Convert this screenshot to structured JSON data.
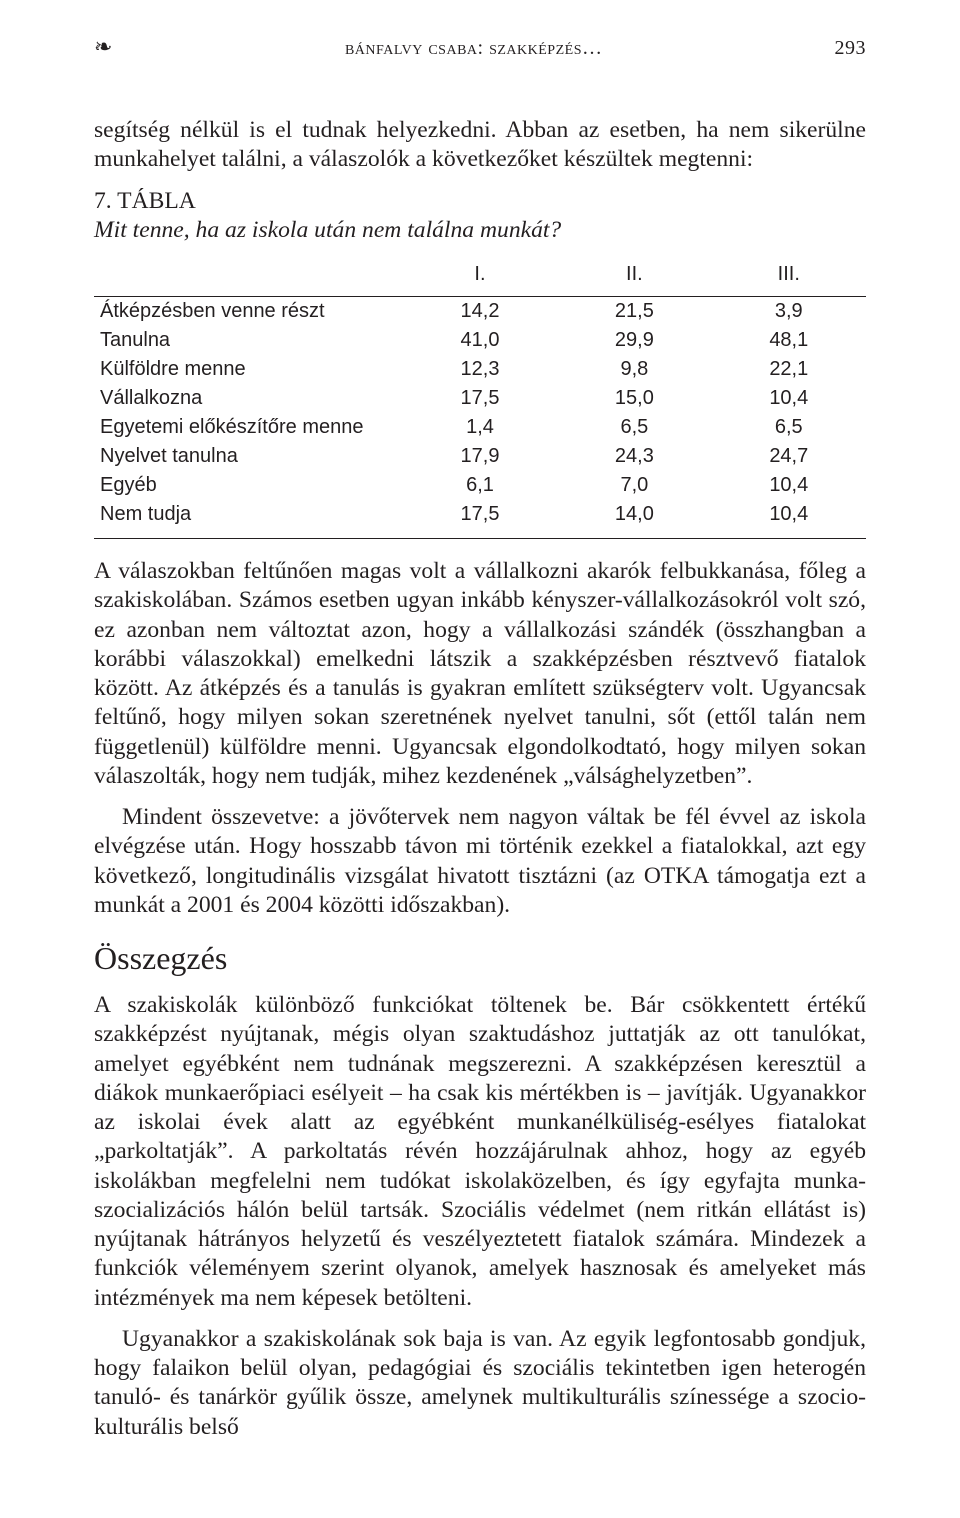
{
  "header": {
    "ornament": "❧",
    "running_title": "bánfalvy csaba: szakképzés…",
    "page_number": "293"
  },
  "paragraphs": {
    "p1": "segítség nélkül is el tudnak helyezkedni. Abban az esetben, ha nem sikerülne munkahelyet találni, a válaszolók a következőket készültek megtenni:",
    "p2": "A válaszokban feltűnően magas volt a vállalkozni akarók felbukkanása, főleg a szakiskolában. Számos esetben ugyan inkább kényszer-vállalkozásokról volt szó, ez azonban nem változtat azon, hogy a vállalkozási szándék (összhangban a korábbi válaszokkal) emelkedni látszik a szakképzésben résztvevő fiatalok között. Az átképzés és a tanulás is gyakran említett szükségterv volt. Ugyancsak feltűnő, hogy milyen sokan szeretnének nyelvet tanulni, sőt (ettől talán nem függetlenül) külföldre menni. Ugyancsak elgondolkodtató, hogy milyen sokan válaszolták, hogy nem tudják, mihez kezdenének „válsághelyzetben”.",
    "p3": "Mindent összevetve: a jövőtervek nem nagyon váltak be fél évvel az iskola elvégzése után. Hogy hosszabb távon mi történik ezekkel a fiatalokkal, azt egy következő, longitudinális vizsgálat hivatott tisztázni (az OTKA támogatja ezt a munkát a 2001 és 2004 közötti időszakban).",
    "p4": "A szakiskolák különböző funkciókat töltenek be. Bár csökkentett értékű szakképzést nyújtanak, mégis olyan szaktudáshoz juttatják az ott tanulókat, amelyet egyébként nem tudnának megszerezni. A szakképzésen keresztül a diákok munkaerőpiaci esélyeit – ha csak kis mértékben is – javítják. Ugyanakkor az iskolai évek alatt az egyébként munkanélküliség-esélyes fiatalokat „parkoltatják”. A parkoltatás révén hozzájárulnak ahhoz, hogy az egyéb iskolákban megfelelni nem tudókat iskolaközelben, és így egyfajta munka-szocializációs hálón belül tartsák. Szociális védelmet (nem ritkán ellátást is) nyújtanak hátrányos helyzetű és veszélyeztetett fiatalok számára. Mindezek a funkciók véleményem szerint olyanok, amelyek hasznosak és amelyeket más intézmények ma nem képesek betölteni.",
    "p5": "Ugyanakkor a szakiskolának sok baja is van. Az egyik legfontosabb gondjuk, hogy falaikon belül olyan, pedagógiai és szociális tekintetben igen heterogén tanuló- és tanárkör gyűlik össze, amelynek multikulturális színessége a szocio-kulturális belső"
  },
  "table": {
    "caption_number": "7. TÁBLA",
    "caption_title": "Mit tenne, ha az iskola után nem találna munkát?",
    "columns": [
      "",
      "I.",
      "II.",
      "III."
    ],
    "rows": [
      [
        "Átképzésben venne részt",
        "14,2",
        "21,5",
        "3,9"
      ],
      [
        "Tanulna",
        "41,0",
        "29,9",
        "48,1"
      ],
      [
        "Külföldre menne",
        "12,3",
        "9,8",
        "22,1"
      ],
      [
        "Vállalkozna",
        "17,5",
        "15,0",
        "10,4"
      ],
      [
        "Egyetemi előkészítőre menne",
        "1,4",
        "6,5",
        "6,5"
      ],
      [
        "Nyelvet tanulna",
        "17,9",
        "24,3",
        "24,7"
      ],
      [
        "Egyéb",
        "6,1",
        "7,0",
        "10,4"
      ],
      [
        "Nem tudja",
        "17,5",
        "14,0",
        "10,4"
      ]
    ]
  },
  "section_heading": "Összegzés"
}
